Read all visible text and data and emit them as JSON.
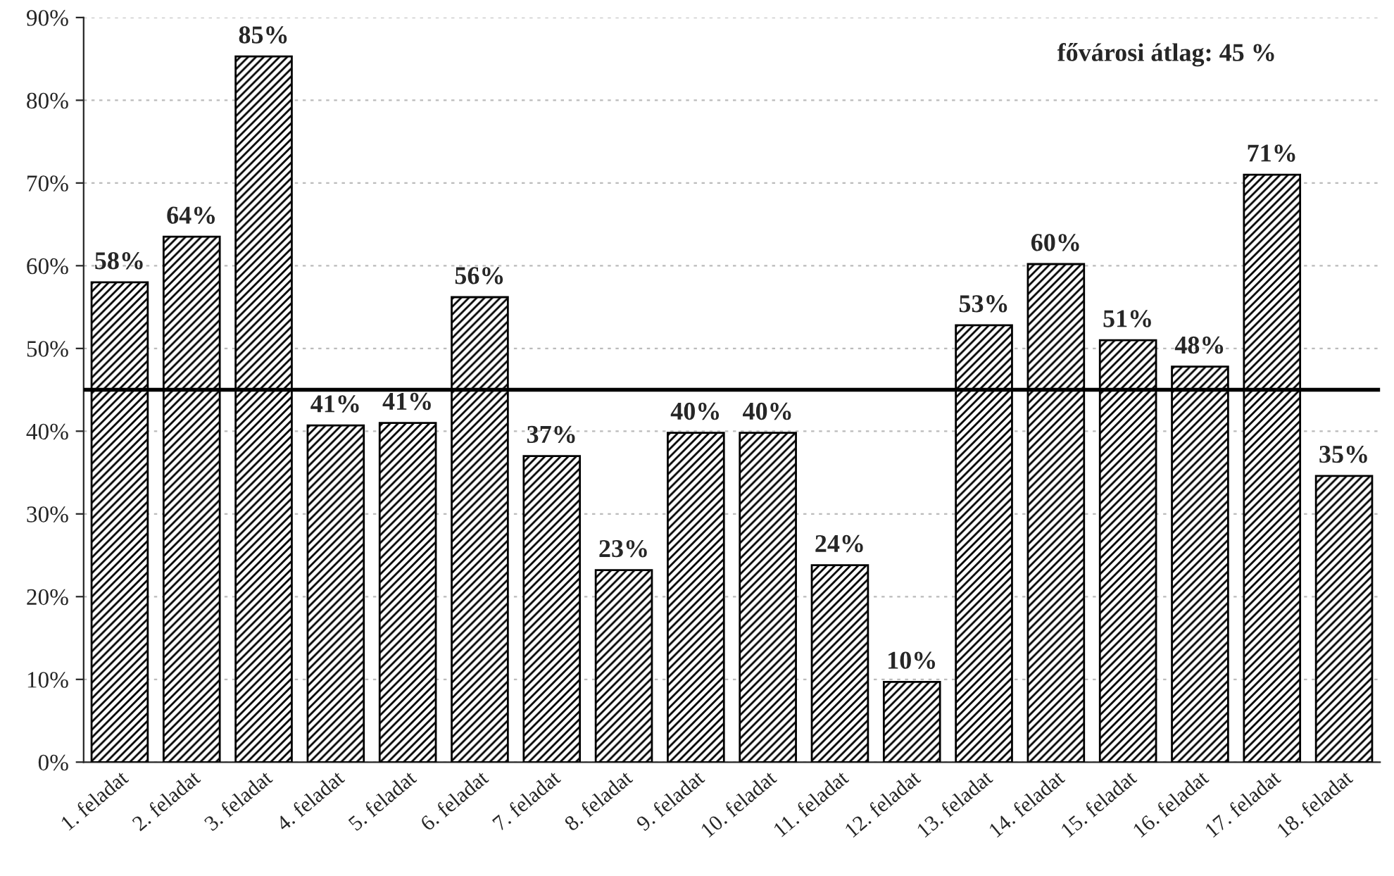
{
  "chart_data": {
    "type": "bar",
    "categories": [
      "1. feladat",
      "2. feladat",
      "3. feladat",
      "4. feladat",
      "5. feladat",
      "6. feladat",
      "7. feladat",
      "8. feladat",
      "9. feladat",
      "10. feladat",
      "11. feladat",
      "12. feladat",
      "13. feladat",
      "14. feladat",
      "15. feladat",
      "16. feladat",
      "17. feladat",
      "18. feladat"
    ],
    "values": [
      58,
      63.5,
      85.3,
      40.7,
      41,
      56.2,
      37,
      23.2,
      39.8,
      39.8,
      23.8,
      9.7,
      52.8,
      60.2,
      51,
      47.8,
      71,
      34.6
    ],
    "value_labels": [
      "58%",
      "64%",
      "85%",
      "41%",
      "41%",
      "56%",
      "37%",
      "23%",
      "40%",
      "40%",
      "24%",
      "10%",
      "53%",
      "60%",
      "51%",
      "48%",
      "71%",
      "35%"
    ],
    "color": "#000000",
    "ylim": [
      0,
      90
    ],
    "yticks": [
      {
        "value": 0,
        "label": "0%"
      },
      {
        "value": 10,
        "label": "10%"
      },
      {
        "value": 20,
        "label": "20%"
      },
      {
        "value": 30,
        "label": "30%"
      },
      {
        "value": 40,
        "label": "40%"
      },
      {
        "value": 50,
        "label": "50%"
      },
      {
        "value": 60,
        "label": "60%"
      },
      {
        "value": 70,
        "label": "70%"
      },
      {
        "value": 80,
        "label": "80%"
      },
      {
        "value": 90,
        "label": "90%"
      }
    ],
    "grid": "y",
    "ref_lines": [
      {
        "axis": "y",
        "value": 45,
        "label": "fővárosi átlag: 45 %",
        "color": "#000000"
      }
    ]
  }
}
